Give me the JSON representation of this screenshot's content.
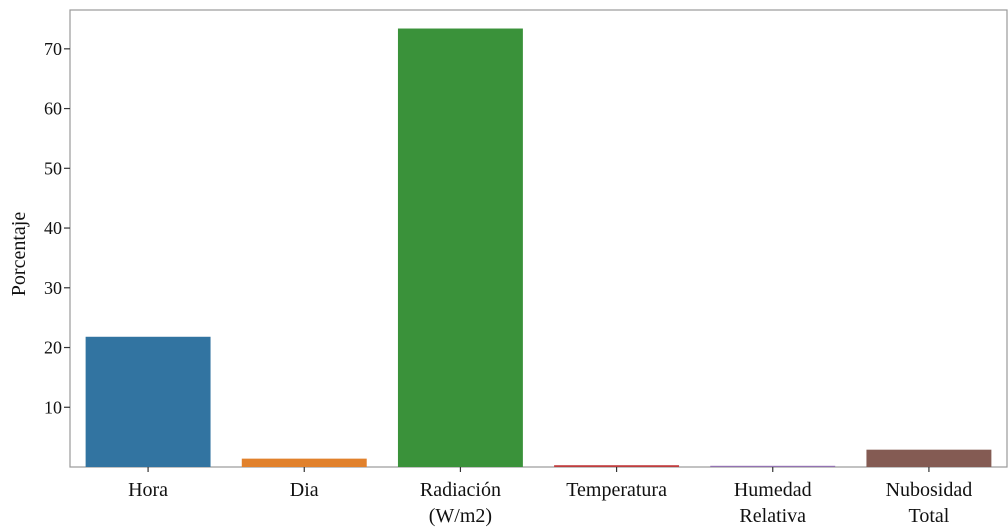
{
  "chart_data": {
    "type": "bar",
    "title": "",
    "xlabel": "",
    "ylabel": "Porcentaje",
    "ylim": [
      0,
      76.5
    ],
    "yticks": [
      10,
      20,
      30,
      40,
      50,
      60,
      70
    ],
    "grid": false,
    "legend": "none",
    "categories": [
      {
        "lines": [
          "Hora"
        ]
      },
      {
        "lines": [
          "Dia"
        ]
      },
      {
        "lines": [
          "Radiación",
          "(W/m2)"
        ]
      },
      {
        "lines": [
          "Temperatura"
        ]
      },
      {
        "lines": [
          "Humedad",
          "Relativa"
        ]
      },
      {
        "lines": [
          "Nubosidad",
          "Total"
        ]
      }
    ],
    "values": [
      21.8,
      1.4,
      73.4,
      0.3,
      0.2,
      2.9
    ],
    "colors": [
      "#3274a1",
      "#e1812c",
      "#3a923a",
      "#c03d3e",
      "#9372b2",
      "#845b53"
    ]
  }
}
